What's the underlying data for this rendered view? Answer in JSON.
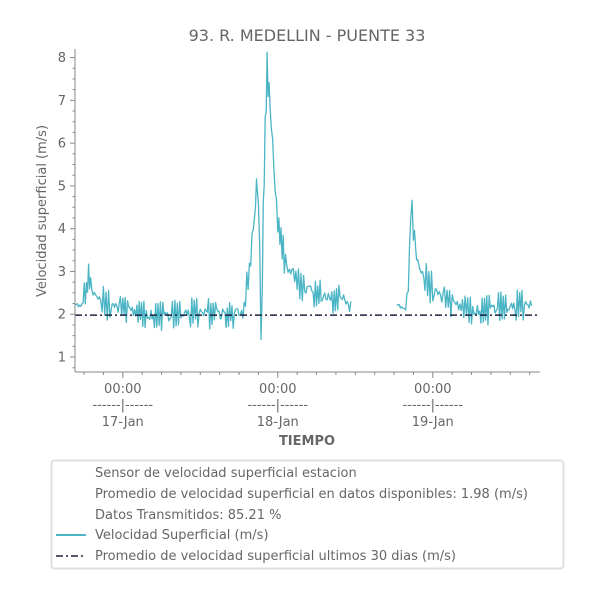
{
  "chart_data": {
    "type": "line",
    "title": "93. R. MEDELLIN - PUENTE 33",
    "xlabel": "TIEMPO",
    "ylabel": "Velocidad superficial (m/s)",
    "ylim": [
      0.65,
      8.2
    ],
    "yticks": [
      1,
      2,
      3,
      4,
      5,
      6,
      7,
      8
    ],
    "x_ticks": [
      {
        "hour": 24,
        "time": "00:00",
        "sep": "------|------",
        "date": "17-Jan"
      },
      {
        "hour": 48,
        "time": "00:00",
        "sep": "------|------",
        "date": "18-Jan"
      },
      {
        "hour": 72,
        "time": "00:00",
        "sep": "------|------",
        "date": "19-Jan"
      }
    ],
    "x_range_hours": [
      16.6,
      88.6
    ],
    "x_unit": "hours since 16-Jan 00:00",
    "grid": false,
    "legend_placement": "bottom",
    "series": [
      {
        "name": "Velocidad Superficial (m/s)",
        "color": "#4bb5c5",
        "style": "solid",
        "segments": [
          [
            [
              16.6,
              2.1
            ],
            [
              17.5,
              2.2
            ],
            [
              18.2,
              2.5
            ],
            [
              18.7,
              2.8
            ],
            [
              19.2,
              2.6
            ],
            [
              20.0,
              2.45
            ],
            [
              21.0,
              2.3
            ],
            [
              22.0,
              2.2
            ],
            [
              24.0,
              2.15
            ],
            [
              26.0,
              2.05
            ],
            [
              28.0,
              2.0
            ],
            [
              30.0,
              1.97
            ],
            [
              31.5,
              1.95
            ],
            [
              33.0,
              2.05
            ],
            [
              36.0,
              2.02
            ],
            [
              40.0,
              2.0
            ],
            [
              42.0,
              2.05
            ],
            [
              42.8,
              2.1
            ],
            [
              43.2,
              2.6
            ],
            [
              43.6,
              3.0
            ],
            [
              44.0,
              3.6
            ],
            [
              44.4,
              4.4
            ],
            [
              44.7,
              5.0
            ],
            [
              45.0,
              4.6
            ],
            [
              45.2,
              3.5
            ],
            [
              45.4,
              1.3
            ],
            [
              45.6,
              2.9
            ],
            [
              45.9,
              5.5
            ],
            [
              46.2,
              7.2
            ],
            [
              46.5,
              7.6
            ],
            [
              46.8,
              6.9
            ],
            [
              47.2,
              6.0
            ],
            [
              47.6,
              4.8
            ],
            [
              48.0,
              4.2
            ],
            [
              48.5,
              3.7
            ],
            [
              49.0,
              3.3
            ],
            [
              50.0,
              3.0
            ],
            [
              51.0,
              2.8
            ],
            [
              52.0,
              2.65
            ],
            [
              54.0,
              2.5
            ],
            [
              56.0,
              2.4
            ],
            [
              58.0,
              2.35
            ],
            [
              59.3,
              2.3
            ]
          ],
          [
            [
              66.4,
              2.1
            ],
            [
              67.4,
              2.15
            ],
            [
              68.0,
              2.2
            ],
            [
              68.4,
              3.4
            ],
            [
              68.6,
              4.5
            ],
            [
              69.0,
              3.9
            ],
            [
              69.5,
              3.4
            ],
            [
              70.0,
              3.1
            ],
            [
              71.0,
              2.8
            ],
            [
              72.0,
              2.6
            ],
            [
              73.0,
              2.45
            ],
            [
              74.0,
              2.35
            ],
            [
              75.0,
              2.25
            ],
            [
              76.0,
              2.2
            ],
            [
              77.0,
              2.15
            ],
            [
              78.0,
              2.1
            ],
            [
              80.0,
              2.1
            ],
            [
              82.0,
              2.15
            ],
            [
              84.0,
              2.2
            ],
            [
              86.0,
              2.2
            ],
            [
              87.3,
              2.2
            ]
          ]
        ]
      },
      {
        "name": "Promedio de velocidad superficial ultimos 30 dias (m/s)",
        "color": "#1f2040",
        "style": "dashdot",
        "value": 1.98
      }
    ],
    "legend": {
      "text_lines": [
        "Sensor de velocidad superficial estacion",
        "Promedio de velocidad superficial en datos disponibles: 1.98 (m/s)",
        "Datos Transmitidos: 85.21 %"
      ],
      "series_lines": [
        "Velocidad Superficial (m/s)",
        "Promedio de velocidad superficial ultimos 30 dias (m/s)"
      ]
    }
  }
}
